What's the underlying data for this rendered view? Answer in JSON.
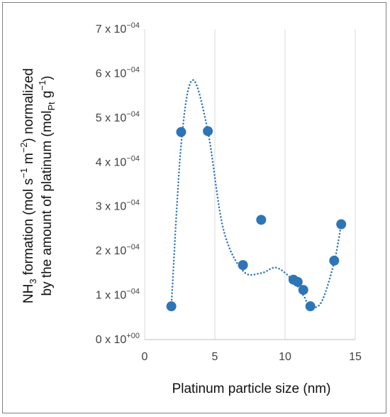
{
  "chart_data": {
    "type": "scatter",
    "xlabel": "Platinum particle size (nm)",
    "ylabel_line1": {
      "parts": [
        {
          "t": "NH",
          "s": "n"
        },
        {
          "t": "3",
          "s": "sub"
        },
        {
          "t": " formation (mol s",
          "s": "n"
        },
        {
          "t": "−1",
          "s": "sup"
        },
        {
          "t": " m",
          "s": "n"
        },
        {
          "t": "−2",
          "s": "sup"
        },
        {
          "t": ")  normalized",
          "s": "n"
        }
      ]
    },
    "ylabel_line2": {
      "parts": [
        {
          "t": "by the amount of platinum (mol",
          "s": "n"
        },
        {
          "t": "Pt",
          "s": "sub"
        },
        {
          "t": " g",
          "s": "n"
        },
        {
          "t": "−1",
          "s": "sup"
        },
        {
          "t": ")",
          "s": "n"
        }
      ]
    },
    "xlim": [
      0,
      15
    ],
    "ylim": [
      0,
      0.0007
    ],
    "x_ticks": [
      {
        "value": 0,
        "label": "0"
      },
      {
        "value": 5,
        "label": "5"
      },
      {
        "value": 10,
        "label": "10"
      },
      {
        "value": 15,
        "label": "15"
      }
    ],
    "y_ticks": [
      {
        "value": 0,
        "mant": "0 x 10",
        "exp": "+00"
      },
      {
        "value": 0.0001,
        "mant": "1 x 10",
        "exp": "−04"
      },
      {
        "value": 0.0002,
        "mant": "2 x 10",
        "exp": "−04"
      },
      {
        "value": 0.0003,
        "mant": "3 x 10",
        "exp": "−04"
      },
      {
        "value": 0.0004,
        "mant": "4 x 10",
        "exp": "−04"
      },
      {
        "value": 0.0005,
        "mant": "5 x 10",
        "exp": "−04"
      },
      {
        "value": 0.0006,
        "mant": "6 x 10",
        "exp": "−04"
      },
      {
        "value": 0.0007,
        "mant": "7 x 10",
        "exp": "−04"
      }
    ],
    "grid": "vertical",
    "points": [
      {
        "x": 1.9,
        "y": 7.5e-05
      },
      {
        "x": 2.6,
        "y": 0.000468
      },
      {
        "x": 4.5,
        "y": 0.00047
      },
      {
        "x": 7.0,
        "y": 0.000168
      },
      {
        "x": 8.3,
        "y": 0.00027
      },
      {
        "x": 10.6,
        "y": 0.000135
      },
      {
        "x": 10.9,
        "y": 0.00013
      },
      {
        "x": 11.3,
        "y": 0.000112
      },
      {
        "x": 11.8,
        "y": 7.5e-05
      },
      {
        "x": 13.5,
        "y": 0.000178
      },
      {
        "x": 14.0,
        "y": 0.00026
      }
    ],
    "trendline": {
      "style": "dotted",
      "points": [
        {
          "x": 1.9,
          "y": 7.5e-05
        },
        {
          "x": 2.6,
          "y": 0.00044
        },
        {
          "x": 3.4,
          "y": 0.000585
        },
        {
          "x": 4.5,
          "y": 0.00047
        },
        {
          "x": 5.6,
          "y": 0.00025
        },
        {
          "x": 7.0,
          "y": 0.000155
        },
        {
          "x": 8.3,
          "y": 0.00015
        },
        {
          "x": 9.4,
          "y": 0.000162
        },
        {
          "x": 10.6,
          "y": 0.000132
        },
        {
          "x": 11.3,
          "y": 0.0001
        },
        {
          "x": 11.8,
          "y": 7.5e-05
        },
        {
          "x": 12.6,
          "y": 8.5e-05
        },
        {
          "x": 13.5,
          "y": 0.000175
        },
        {
          "x": 14.0,
          "y": 0.00026
        }
      ]
    },
    "colors": {
      "marker": "#2E75B6",
      "trendline": "#2E75B6",
      "grid": "#d9d9d9"
    }
  }
}
